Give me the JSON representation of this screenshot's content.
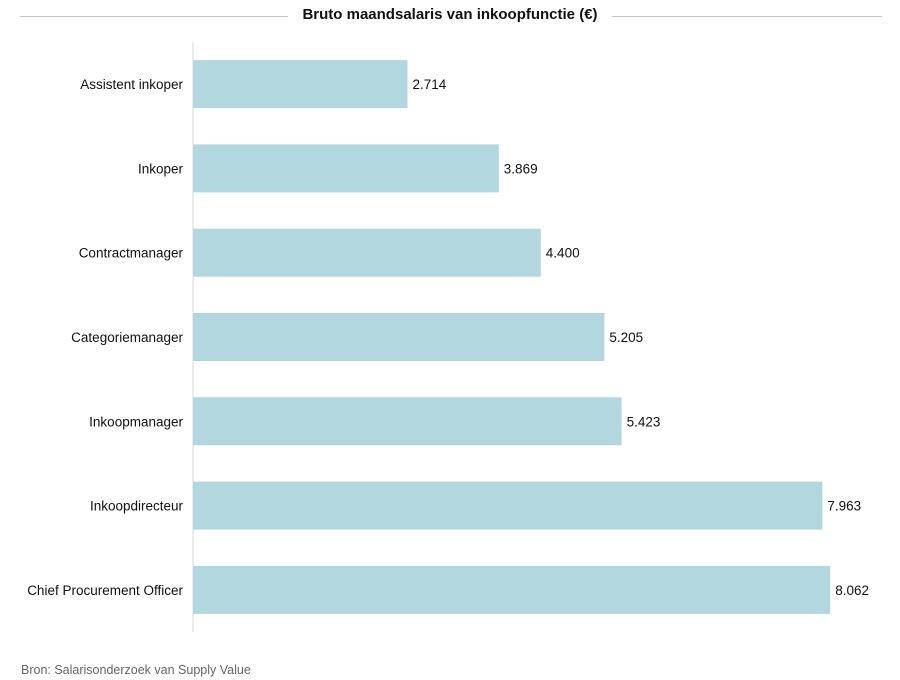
{
  "chart_data": {
    "type": "bar",
    "orientation": "horizontal",
    "title": "Bruto maandsalaris van inkoopfunctie (€)",
    "categories": [
      "Assistent inkoper",
      "Inkoper",
      "Contractmanager",
      "Categoriemanager",
      "Inkoopmanager",
      "Inkoopdirecteur",
      "Chief Procurement Officer"
    ],
    "values": [
      2714,
      3869,
      4400,
      5205,
      5423,
      7963,
      8062
    ],
    "value_labels": [
      "2.714",
      "3.869",
      "4.400",
      "5.205",
      "5.423",
      "7.963",
      "8.062"
    ],
    "xlim": [
      0,
      8300
    ],
    "grid": false,
    "legend": "none",
    "bar_color": "#b3d7df"
  },
  "source": "Bron: Salarisonderzoek van Supply Value"
}
